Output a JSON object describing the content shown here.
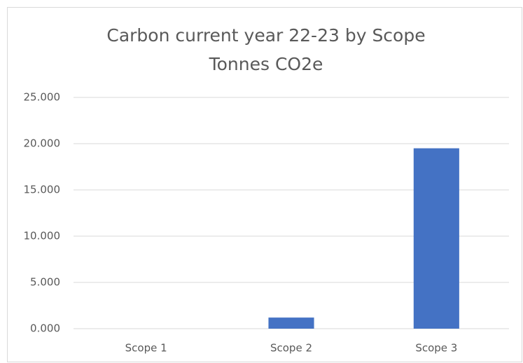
{
  "chart_data": {
    "type": "bar",
    "title": "Carbon current year 22-23 by Scope",
    "subtitle": "Tonnes CO2e",
    "categories": [
      "Scope 1",
      "Scope 2",
      "Scope 3"
    ],
    "values": [
      0,
      1200,
      19500
    ],
    "color": "#4472c4",
    "ylim": [
      0,
      25000
    ],
    "yticks": [
      {
        "value": 0,
        "label": "0.000"
      },
      {
        "value": 5000,
        "label": "5.000"
      },
      {
        "value": 10000,
        "label": "10.000"
      },
      {
        "value": 15000,
        "label": "15.000"
      },
      {
        "value": 20000,
        "label": "20.000"
      },
      {
        "value": 25000,
        "label": "25.000"
      }
    ],
    "grid": true
  }
}
